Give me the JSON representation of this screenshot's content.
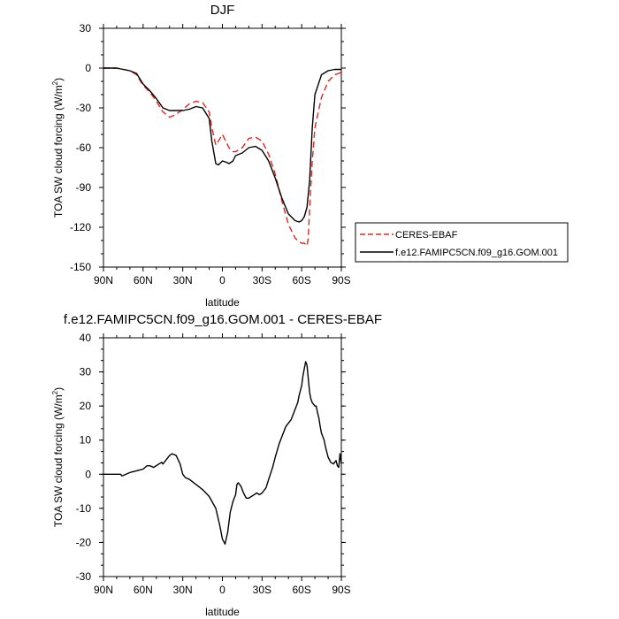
{
  "chart_data": [
    {
      "type": "line",
      "title": "DJF",
      "xlabel": "latitude",
      "ylabel": "TOA SW cloud forcing (W/m",
      "ylabel_sup": "2",
      "ylabel_close": ")",
      "xlim": [
        90,
        -90
      ],
      "ylim": [
        -150,
        30
      ],
      "xticks": [
        90,
        60,
        30,
        0,
        -30,
        -60,
        -90
      ],
      "xtick_labels": [
        "90N",
        "60N",
        "30N",
        "0",
        "30S",
        "60S",
        "90S"
      ],
      "yticks": [
        30,
        0,
        -30,
        -60,
        -90,
        -120,
        -150
      ],
      "ytick_labels": [
        "30",
        "0",
        "-30",
        "-60",
        "-90",
        "-120",
        "-150"
      ],
      "legend": {
        "position": "right-lower"
      },
      "series": [
        {
          "name": "CERES-EBAF",
          "color": "#e8231c",
          "dash": "dashed",
          "x": [
            90,
            85,
            80,
            75,
            70,
            65,
            60,
            55,
            50,
            45,
            40,
            35,
            30,
            25,
            20,
            15,
            10,
            8,
            5,
            3,
            0,
            -3,
            -5,
            -8,
            -10,
            -15,
            -20,
            -25,
            -30,
            -35,
            -40,
            -45,
            -50,
            -55,
            -58,
            -60,
            -62,
            -63,
            -64,
            -65,
            -66,
            -68,
            -70,
            -75,
            -80,
            -85,
            -88,
            -90
          ],
          "y": [
            0,
            0,
            0,
            -1,
            -2,
            -5,
            -13,
            -18,
            -25,
            -33,
            -37,
            -35,
            -31,
            -27,
            -25,
            -26,
            -33,
            -45,
            -58,
            -55,
            -50,
            -56,
            -60,
            -63,
            -63,
            -60,
            -53,
            -52,
            -55,
            -65,
            -80,
            -100,
            -118,
            -128,
            -131,
            -132,
            -132,
            -133,
            -134,
            -128,
            -105,
            -70,
            -45,
            -22,
            -10,
            -5,
            -4,
            -3
          ]
        },
        {
          "name": "f.e12.FAMIPC5CN.f09_g16.GOM.001",
          "color": "#000000",
          "dash": "solid",
          "x": [
            90,
            85,
            80,
            75,
            70,
            65,
            60,
            55,
            50,
            45,
            40,
            35,
            30,
            25,
            20,
            15,
            10,
            8,
            5,
            3,
            0,
            -3,
            -5,
            -8,
            -10,
            -15,
            -20,
            -25,
            -30,
            -35,
            -40,
            -45,
            -50,
            -55,
            -58,
            -60,
            -62,
            -64,
            -66,
            -68,
            -70,
            -75,
            -80,
            -85,
            -90
          ],
          "y": [
            0,
            0,
            0,
            -1,
            -2,
            -4,
            -12,
            -17,
            -23,
            -30,
            -32,
            -32,
            -32,
            -31,
            -29,
            -30,
            -38,
            -55,
            -72,
            -73,
            -70,
            -71,
            -72,
            -70,
            -66,
            -64,
            -60,
            -59,
            -62,
            -70,
            -83,
            -98,
            -110,
            -115,
            -116,
            -115,
            -112,
            -105,
            -85,
            -45,
            -20,
            -5,
            -2,
            -1,
            -1
          ]
        }
      ]
    },
    {
      "type": "line",
      "title": "f.e12.FAMIPC5CN.f09_g16.GOM.001 - CERES-EBAF",
      "xlabel": "latitude",
      "ylabel": "TOA SW cloud forcing (W/m",
      "ylabel_sup": "2",
      "ylabel_close": ")",
      "xlim": [
        90,
        -90
      ],
      "ylim": [
        -30,
        40
      ],
      "xticks": [
        90,
        60,
        30,
        0,
        -30,
        -60,
        -90
      ],
      "xtick_labels": [
        "90N",
        "60N",
        "30N",
        "0",
        "30S",
        "60S",
        "90S"
      ],
      "yticks": [
        40,
        30,
        20,
        10,
        0,
        -10,
        -20,
        -30
      ],
      "ytick_labels": [
        "40",
        "30",
        "20",
        "10",
        "0",
        "-10",
        "-20",
        "-30"
      ],
      "series": [
        {
          "color": "#000000",
          "dash": "solid",
          "x": [
            90,
            80,
            77,
            76,
            70,
            65,
            60,
            57,
            55,
            52,
            50,
            48,
            46,
            45,
            42,
            40,
            38,
            35,
            32,
            30,
            28,
            25,
            20,
            15,
            10,
            5,
            2,
            0,
            -2,
            -4,
            -6,
            -8,
            -10,
            -11,
            -12,
            -14,
            -16,
            -18,
            -20,
            -22,
            -24,
            -26,
            -28,
            -30,
            -33,
            -35,
            -38,
            -40,
            -43,
            -45,
            -48,
            -50,
            -52,
            -54,
            -55,
            -56,
            -57,
            -58,
            -60,
            -61,
            -62,
            -63,
            -64,
            -65,
            -66,
            -67,
            -68,
            -70,
            -71,
            -72,
            -73,
            -74,
            -75,
            -77,
            -78,
            -80,
            -82,
            -84,
            -86,
            -87,
            -88,
            -89,
            -90
          ],
          "y": [
            0,
            0,
            0,
            -0.5,
            0.5,
            1,
            1.5,
            2.5,
            2.5,
            2,
            2.5,
            3,
            3.5,
            3,
            4.5,
            5.5,
            6,
            5.5,
            3,
            0,
            -1,
            -1.5,
            -3,
            -4.5,
            -6.5,
            -10,
            -15,
            -19,
            -20.5,
            -17,
            -11,
            -8,
            -6,
            -3,
            -2.5,
            -3.5,
            -5.5,
            -7,
            -7,
            -6.5,
            -6,
            -5.5,
            -6,
            -5.5,
            -4,
            -1.5,
            2,
            5,
            9,
            11,
            14,
            15,
            16,
            18,
            19,
            20,
            21,
            23,
            26,
            29,
            31,
            33,
            32,
            28,
            24,
            22,
            21,
            20,
            20,
            18,
            16.5,
            14,
            12,
            10,
            8,
            5,
            3.5,
            3,
            4,
            2.5,
            2,
            6,
            3
          ]
        }
      ]
    }
  ]
}
